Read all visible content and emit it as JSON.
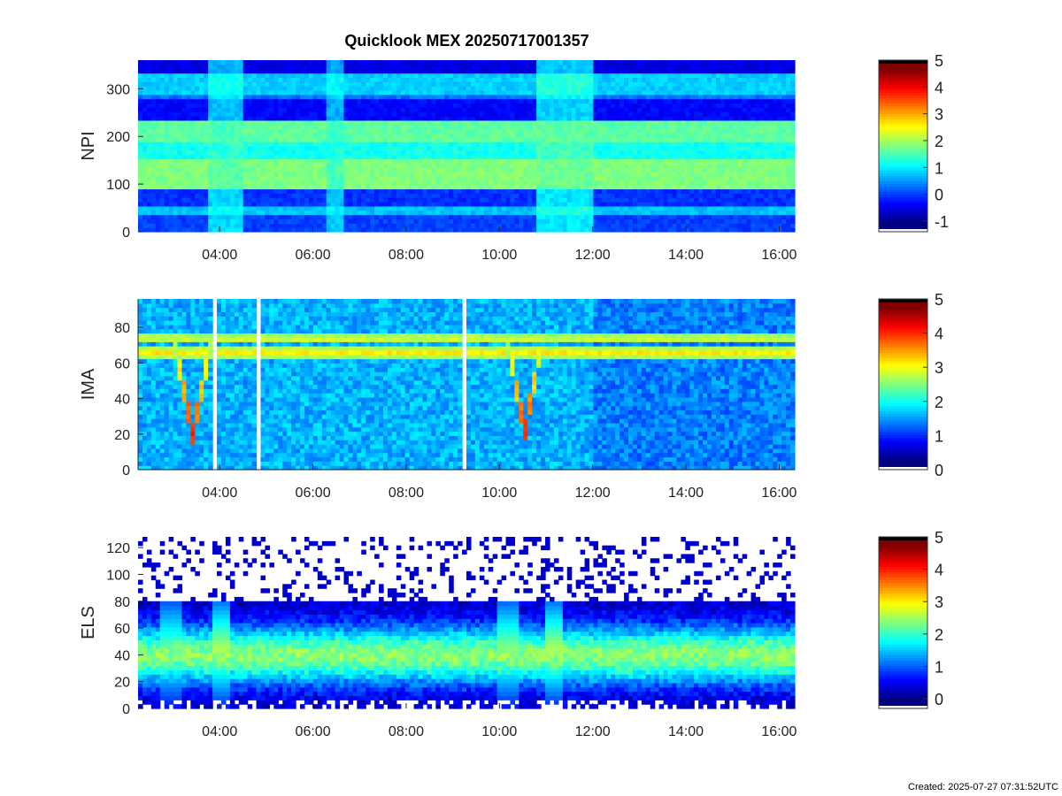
{
  "title": "Quicklook MEX 20250717001357",
  "created": "Created: 2025-07-27 07:31:52UTC",
  "chart_data": [
    {
      "type": "heatmap",
      "ylabel": "NPI",
      "xlim": [
        "02:15",
        "16:20"
      ],
      "ylim": [
        0,
        360
      ],
      "xticks": [
        "04:00",
        "06:00",
        "08:00",
        "10:00",
        "12:00",
        "14:00",
        "16:00"
      ],
      "yticks": [
        "0",
        "100",
        "200",
        "300"
      ],
      "colorbar": {
        "range": [
          -1.4,
          5
        ],
        "ticks": [
          "-1",
          "0",
          "1",
          "2",
          "3",
          "4",
          "5"
        ]
      },
      "bands": [
        {
          "y": [
            0,
            35
          ],
          "value": -0.2
        },
        {
          "y": [
            35,
            55
          ],
          "value": 0.6
        },
        {
          "y": [
            55,
            90
          ],
          "value": -0.3
        },
        {
          "y": [
            90,
            155
          ],
          "value": 1.8
        },
        {
          "y": [
            155,
            185
          ],
          "value": 1.1
        },
        {
          "y": [
            185,
            230
          ],
          "value": 1.6
        },
        {
          "y": [
            230,
            275
          ],
          "value": -0.6
        },
        {
          "y": [
            275,
            290
          ],
          "value": 0.1
        },
        {
          "y": [
            290,
            330
          ],
          "value": 0.7
        },
        {
          "y": [
            330,
            360
          ],
          "value": -0.8
        }
      ],
      "events": [
        {
          "t": [
            "03:45",
            "04:30"
          ],
          "value": 1.4
        },
        {
          "t": [
            "06:15",
            "06:40"
          ],
          "value": 1.2
        },
        {
          "t": [
            "10:45",
            "12:00"
          ],
          "value": 1.6
        }
      ]
    },
    {
      "type": "heatmap",
      "ylabel": "IMA",
      "xlim": [
        "02:15",
        "16:20"
      ],
      "ylim": [
        0,
        96
      ],
      "xticks": [
        "04:00",
        "06:00",
        "08:00",
        "10:00",
        "12:00",
        "14:00",
        "16:00"
      ],
      "yticks": [
        "0",
        "20",
        "40",
        "60",
        "80"
      ],
      "colorbar": {
        "range": [
          0,
          5
        ],
        "ticks": [
          "0",
          "1",
          "2",
          "3",
          "4",
          "5"
        ]
      },
      "background_value": 1.5,
      "lines": [
        {
          "y": 74,
          "value": 3.0
        },
        {
          "y": 66,
          "value": 3.2
        }
      ],
      "dips": [
        {
          "t": [
            "03:00",
            "03:50"
          ],
          "min_y": 20,
          "value": 4.0
        },
        {
          "t": [
            "10:10",
            "10:55"
          ],
          "min_y": 21,
          "value": 4.0
        }
      ],
      "data_gaps": [
        "03:55",
        "04:50",
        "09:15"
      ]
    },
    {
      "type": "heatmap",
      "ylabel": "ELS",
      "xlim": [
        "02:15",
        "16:20"
      ],
      "ylim": [
        0,
        128
      ],
      "xticks": [
        "04:00",
        "06:00",
        "08:00",
        "10:00",
        "12:00",
        "14:00",
        "16:00"
      ],
      "yticks": [
        "0",
        "20",
        "40",
        "60",
        "80",
        "100",
        "120"
      ],
      "colorbar": {
        "range": [
          -0.3,
          5
        ],
        "ticks": [
          "0",
          "1",
          "2",
          "3",
          "4",
          "5"
        ]
      },
      "core": {
        "y": [
          20,
          60
        ],
        "peak_y": 40,
        "value": 2.4
      },
      "bursts": [
        {
          "t": [
            "02:45",
            "03:10"
          ],
          "value": 2.2
        },
        {
          "t": [
            "03:50",
            "04:15"
          ],
          "value": 2.6
        },
        {
          "t": [
            "09:55",
            "10:25"
          ],
          "value": 2.4
        },
        {
          "t": [
            "11:00",
            "11:20"
          ],
          "value": 2.6
        }
      ]
    }
  ]
}
